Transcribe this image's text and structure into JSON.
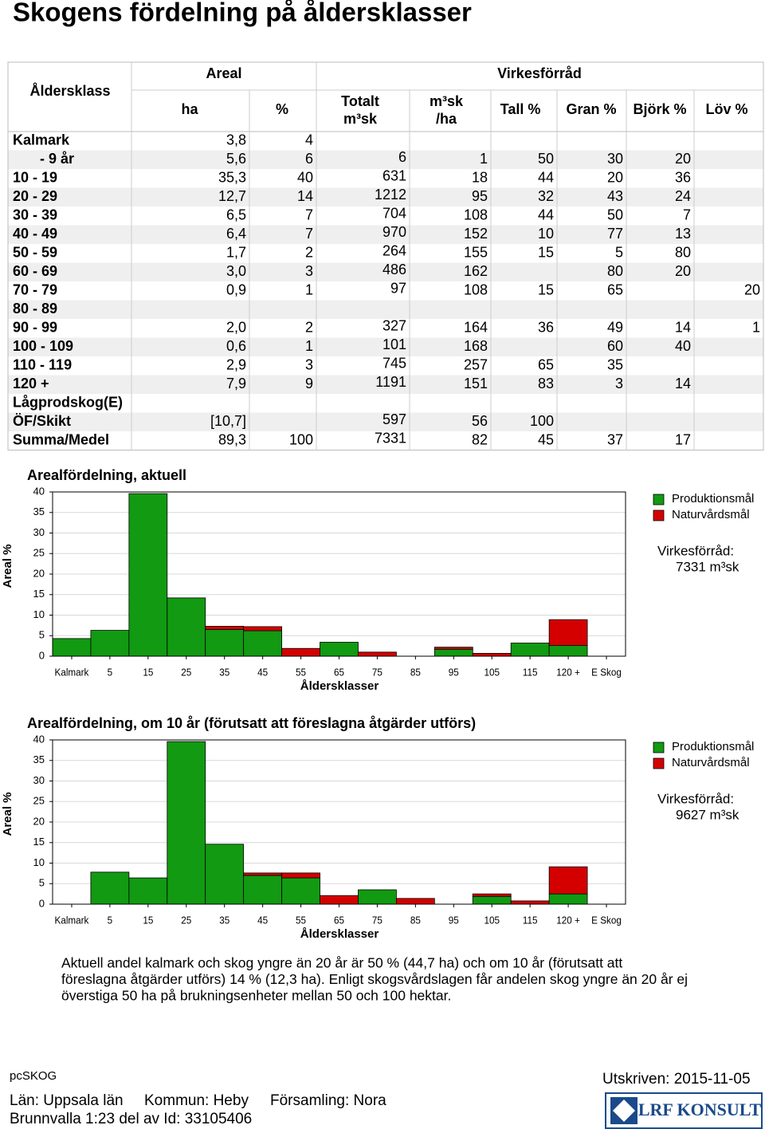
{
  "title": "Skogens fördelning på åldersklasser",
  "table": {
    "header": {
      "aldersklass": "Åldersklass",
      "areal": "Areal",
      "virkesforrad": "Virkesförråd",
      "columns": [
        "ha",
        "%",
        [
          "Totalt",
          "m³sk"
        ],
        [
          "m³sk",
          "/ha"
        ],
        "Tall %",
        "Gran %",
        "Björk %",
        "Löv %"
      ]
    },
    "rows": [
      [
        "Kalmark",
        "3,8",
        "4",
        null,
        null,
        null,
        null,
        null,
        null
      ],
      [
        "- 9 år",
        "5,6",
        "6",
        "6",
        "1",
        "50",
        "30",
        "20",
        null
      ],
      [
        "10 - 19",
        "35,3",
        "40",
        "631",
        "18",
        "44",
        "20",
        "36",
        null
      ],
      [
        "20 - 29",
        "12,7",
        "14",
        "1212",
        "95",
        "32",
        "43",
        "24",
        null
      ],
      [
        "30 - 39",
        "6,5",
        "7",
        "704",
        "108",
        "44",
        "50",
        "7",
        null
      ],
      [
        "40 - 49",
        "6,4",
        "7",
        "970",
        "152",
        "10",
        "77",
        "13",
        null
      ],
      [
        "50 - 59",
        "1,7",
        "2",
        "264",
        "155",
        "15",
        "5",
        "80",
        null
      ],
      [
        "60 - 69",
        "3,0",
        "3",
        "486",
        "162",
        null,
        "80",
        "20",
        null
      ],
      [
        "70 - 79",
        "0,9",
        "1",
        "97",
        "108",
        "15",
        "65",
        null,
        "20"
      ],
      [
        "80 - 89",
        null,
        null,
        null,
        null,
        null,
        null,
        null,
        null
      ],
      [
        "90 - 99",
        "2,0",
        "2",
        "327",
        "164",
        "36",
        "49",
        "14",
        "1"
      ],
      [
        "100 - 109",
        "0,6",
        "1",
        "101",
        "168",
        null,
        "60",
        "40",
        null
      ],
      [
        "110 - 119",
        "2,9",
        "3",
        "745",
        "257",
        "65",
        "35",
        null,
        null
      ],
      [
        "120 +",
        "7,9",
        "9",
        "1191",
        "151",
        "83",
        "3",
        "14",
        null
      ],
      [
        "Lågprodskog(E)",
        null,
        null,
        null,
        null,
        null,
        null,
        null,
        null
      ],
      [
        "ÖF/Skikt",
        "[10,7]",
        null,
        "597",
        "56",
        "100",
        null,
        null,
        null
      ],
      [
        "Summa/Medel",
        "89,3",
        "100",
        "7331",
        "82",
        "45",
        "37",
        "17",
        null
      ]
    ]
  },
  "chart_data": [
    {
      "type": "stacked_bar",
      "title": "Arealfördelning, aktuell",
      "y_label": "Areal %",
      "x_label": "Åldersklasser",
      "categories": [
        "Kalmark",
        "5",
        "15",
        "25",
        "35",
        "45",
        "55",
        "65",
        "75",
        "85",
        "95",
        "105",
        "115",
        "120 +",
        "E Skog"
      ],
      "series": [
        {
          "name": "Produktionsmål",
          "color": "#129a12",
          "values": [
            4.3,
            6.3,
            39.6,
            14.2,
            6.5,
            6.2,
            0,
            3.4,
            0,
            0,
            1.7,
            0,
            3.2,
            2.6,
            0
          ]
        },
        {
          "name": "Naturvårdsmål",
          "color": "#d40000",
          "values": [
            0,
            0,
            0,
            0,
            0.8,
            1.0,
            1.9,
            0,
            1.0,
            0,
            0.5,
            0.7,
            0,
            6.3,
            0
          ]
        }
      ],
      "ylim": [
        0,
        40
      ],
      "yticks": [
        0,
        5,
        10,
        15,
        20,
        25,
        30,
        35,
        40
      ],
      "grid": true,
      "virkesforrad_label": "Virkesförråd:",
      "virkesforrad_value": "7331 m³sk"
    },
    {
      "type": "stacked_bar",
      "title": "Arealfördelning, om 10 år (förutsatt att föreslagna åtgärder utförs)",
      "y_label": "Areal %",
      "x_label": "Åldersklasser",
      "categories": [
        "Kalmark",
        "5",
        "15",
        "25",
        "35",
        "45",
        "55",
        "65",
        "75",
        "85",
        "95",
        "105",
        "115",
        "120 +",
        "E Skog"
      ],
      "series": [
        {
          "name": "Produktionsmål",
          "color": "#129a12",
          "values": [
            0,
            7.8,
            6.4,
            39.6,
            14.6,
            7.0,
            6.4,
            0,
            3.5,
            0,
            0,
            1.9,
            0,
            2.5,
            0
          ]
        },
        {
          "name": "Naturvårdsmål",
          "color": "#d40000",
          "values": [
            0,
            0,
            0,
            0,
            0,
            0.6,
            1.2,
            2.1,
            0,
            1.4,
            0,
            0.6,
            0.8,
            6.6,
            0
          ]
        }
      ],
      "ylim": [
        0,
        40
      ],
      "yticks": [
        0,
        5,
        10,
        15,
        20,
        25,
        30,
        35,
        40
      ],
      "grid": true,
      "virkesforrad_label": "Virkesförråd:",
      "virkesforrad_value": "9627 m³sk"
    }
  ],
  "paragraph": [
    "Aktuell andel kalmark och skog yngre än 20 år är 50 % (44,7 ha) och om 10 år (förutsatt att",
    "föreslagna åtgärder utförs) 14 % (12,3 ha). Enligt skogsvårdslagen får andelen skog yngre än 20 år ej",
    "överstiga 50 ha på brukningsenheter mellan 50 och 100 hektar."
  ],
  "footer": {
    "program": "pcSKOG",
    "printed": "Utskriven: 2015-11-05",
    "lan": "Län: Uppsala län",
    "kommun": "Kommun: Heby",
    "forsamling": "Församling: Nora",
    "property": "Brunnvalla 1:23 del av Id: 33105406",
    "logo": "LRF KONSULT"
  }
}
